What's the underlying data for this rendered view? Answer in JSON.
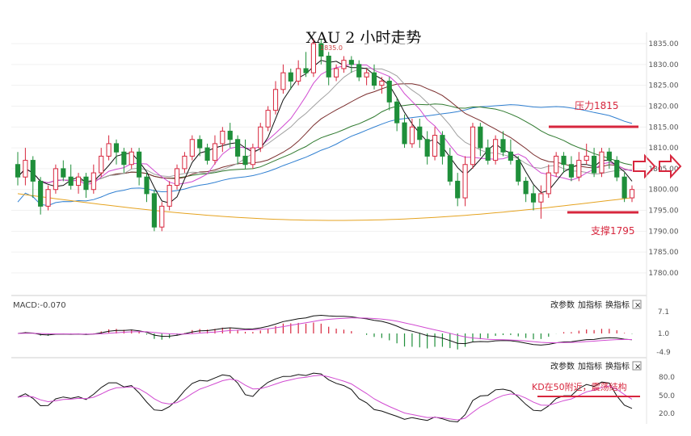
{
  "chart_data": {
    "type": "candlestick",
    "title": "XAU 2 小时走势",
    "colors": {
      "up": "#d7263d",
      "down": "#1f8f3a",
      "ma_black": "#111111",
      "ma_magenta": "#d14bd1",
      "ma_gray": "#a0a0a0",
      "ma_maroon": "#7a2d2d",
      "ma_green": "#2f7a2f",
      "ma_blue": "#2f7fd1",
      "ma_orange": "#e5a320",
      "annotation": "#d7263d"
    },
    "main": {
      "ylim": [
        1775,
        1837
      ],
      "yticks": [
        "1835.00",
        "1830.00",
        "1825.00",
        "1820.00",
        "1815.00",
        "1810.00",
        "1805.00",
        "1800.00",
        "1795.00",
        "1790.00",
        "1785.00",
        "1780.00"
      ],
      "peak_label": "1835.0",
      "candles": [
        [
          1806,
          1803,
          1809,
          1801
        ],
        [
          1803,
          1807,
          1810,
          1801
        ],
        [
          1807,
          1802,
          1808,
          1798
        ],
        [
          1802,
          1796,
          1803,
          1794
        ],
        [
          1796,
          1800,
          1801,
          1795
        ],
        [
          1800,
          1805,
          1806,
          1799
        ],
        [
          1805,
          1803,
          1807,
          1802
        ],
        [
          1803,
          1801,
          1806,
          1800
        ],
        [
          1801,
          1803,
          1804,
          1799
        ],
        [
          1803,
          1800,
          1804,
          1798
        ],
        [
          1800,
          1804,
          1806,
          1799
        ],
        [
          1804,
          1808,
          1810,
          1803
        ],
        [
          1808,
          1811,
          1813,
          1807
        ],
        [
          1811,
          1809,
          1812,
          1806
        ],
        [
          1809,
          1806,
          1810,
          1804
        ],
        [
          1806,
          1809,
          1810,
          1805
        ],
        [
          1809,
          1803,
          1810,
          1801
        ],
        [
          1803,
          1799,
          1804,
          1797
        ],
        [
          1799,
          1791,
          1800,
          1790
        ],
        [
          1791,
          1796,
          1797,
          1790
        ],
        [
          1796,
          1801,
          1802,
          1795
        ],
        [
          1801,
          1805,
          1806,
          1800
        ],
        [
          1805,
          1808,
          1809,
          1804
        ],
        [
          1808,
          1812,
          1813,
          1807
        ],
        [
          1812,
          1810,
          1813,
          1808
        ],
        [
          1810,
          1807,
          1811,
          1806
        ],
        [
          1807,
          1811,
          1813,
          1806
        ],
        [
          1811,
          1814,
          1815,
          1809
        ],
        [
          1814,
          1812,
          1816,
          1810
        ],
        [
          1812,
          1808,
          1813,
          1806
        ],
        [
          1808,
          1806,
          1812,
          1805
        ],
        [
          1806,
          1810,
          1811,
          1805
        ],
        [
          1810,
          1815,
          1816,
          1809
        ],
        [
          1815,
          1819,
          1820,
          1814
        ],
        [
          1819,
          1824,
          1826,
          1818
        ],
        [
          1824,
          1828,
          1830,
          1823
        ],
        [
          1828,
          1826,
          1829,
          1824
        ],
        [
          1826,
          1829,
          1831,
          1825
        ],
        [
          1829,
          1828,
          1833,
          1827
        ],
        [
          1828,
          1835,
          1836,
          1827
        ],
        [
          1835,
          1832,
          1836,
          1830
        ],
        [
          1832,
          1827,
          1833,
          1825
        ],
        [
          1827,
          1829,
          1830,
          1826
        ],
        [
          1829,
          1831,
          1832,
          1828
        ],
        [
          1831,
          1830,
          1832,
          1828
        ],
        [
          1830,
          1827,
          1831,
          1826
        ],
        [
          1827,
          1828,
          1829,
          1825
        ],
        [
          1828,
          1825,
          1830,
          1824
        ],
        [
          1825,
          1826,
          1827,
          1823
        ],
        [
          1826,
          1821,
          1827,
          1819
        ],
        [
          1821,
          1816,
          1822,
          1814
        ],
        [
          1816,
          1811,
          1818,
          1810
        ],
        [
          1811,
          1815,
          1817,
          1810
        ],
        [
          1815,
          1812,
          1817,
          1810
        ],
        [
          1812,
          1808,
          1814,
          1806
        ],
        [
          1808,
          1813,
          1815,
          1807
        ],
        [
          1813,
          1808,
          1814,
          1806
        ],
        [
          1808,
          1802,
          1810,
          1801
        ],
        [
          1802,
          1798,
          1804,
          1796
        ],
        [
          1798,
          1806,
          1808,
          1796
        ],
        [
          1806,
          1815,
          1816,
          1805
        ],
        [
          1815,
          1810,
          1816,
          1808
        ],
        [
          1810,
          1807,
          1812,
          1806
        ],
        [
          1807,
          1812,
          1813,
          1806
        ],
        [
          1812,
          1809,
          1814,
          1808
        ],
        [
          1809,
          1807,
          1812,
          1806
        ],
        [
          1807,
          1802,
          1808,
          1801
        ],
        [
          1802,
          1799,
          1803,
          1797
        ],
        [
          1799,
          1797,
          1801,
          1795
        ],
        [
          1797,
          1799,
          1801,
          1793
        ],
        [
          1799,
          1804,
          1806,
          1798
        ],
        [
          1804,
          1808,
          1809,
          1803
        ],
        [
          1808,
          1806,
          1809,
          1804
        ],
        [
          1806,
          1803,
          1808,
          1802
        ],
        [
          1803,
          1807,
          1809,
          1802
        ],
        [
          1807,
          1808,
          1811,
          1806
        ],
        [
          1808,
          1804,
          1810,
          1803
        ],
        [
          1804,
          1809,
          1810,
          1803
        ],
        [
          1809,
          1807,
          1810,
          1805
        ],
        [
          1807,
          1803,
          1808,
          1802
        ],
        [
          1803,
          1798,
          1804,
          1797
        ],
        [
          1798,
          1800,
          1801,
          1797
        ]
      ]
    },
    "macd_panel": {
      "label": "MACD:-0.070",
      "yticks": [
        "7.1",
        "1.0",
        "-4.9"
      ]
    },
    "kd_panel": {
      "yticks": [
        "80.0",
        "50.0",
        "20.0"
      ]
    },
    "annotations": {
      "resistance": "压力1815",
      "support": "支撑1795",
      "kd_note": "KD在50附近，震荡结构"
    }
  },
  "toolbar": {
    "param": "改参数",
    "add": "加指标",
    "switch": "换指标",
    "close": "×"
  }
}
